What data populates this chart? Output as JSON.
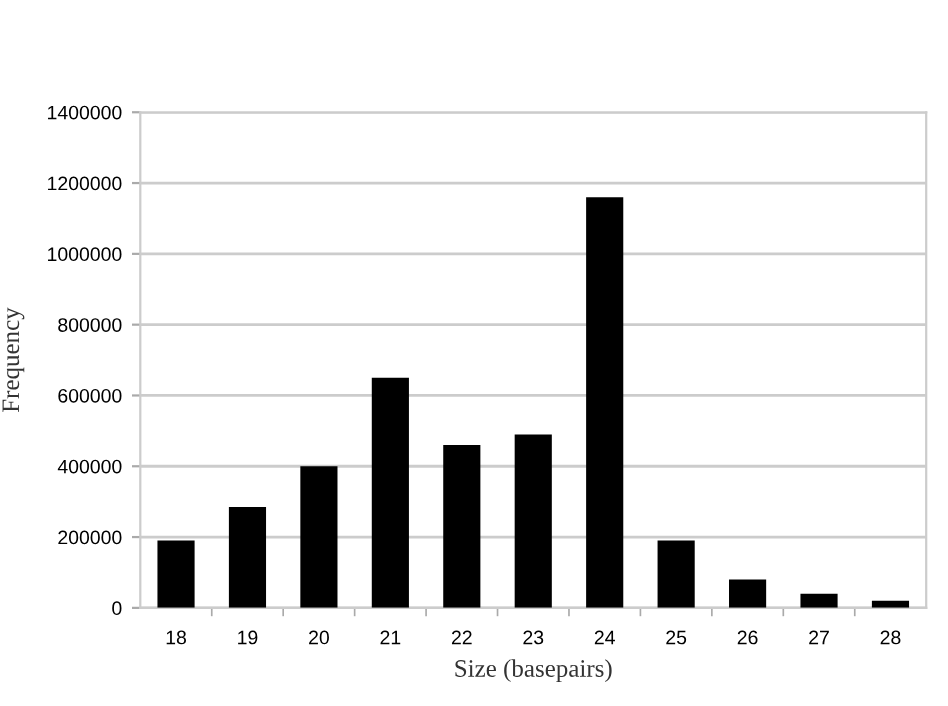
{
  "chart_data": {
    "type": "bar",
    "xlabel": "Size (basepairs)",
    "ylabel": "Frequency",
    "categories": [
      "18",
      "19",
      "20",
      "21",
      "22",
      "23",
      "24",
      "25",
      "26",
      "27",
      "28"
    ],
    "values": [
      190000,
      285000,
      400000,
      650000,
      460000,
      490000,
      1160000,
      190000,
      80000,
      40000,
      20000
    ],
    "color": "#000000",
    "ylim": [
      0,
      1400000
    ],
    "yticks": [
      0,
      200000,
      400000,
      600000,
      800000,
      1000000,
      1200000,
      1400000
    ],
    "grid": "y",
    "legend": false
  }
}
